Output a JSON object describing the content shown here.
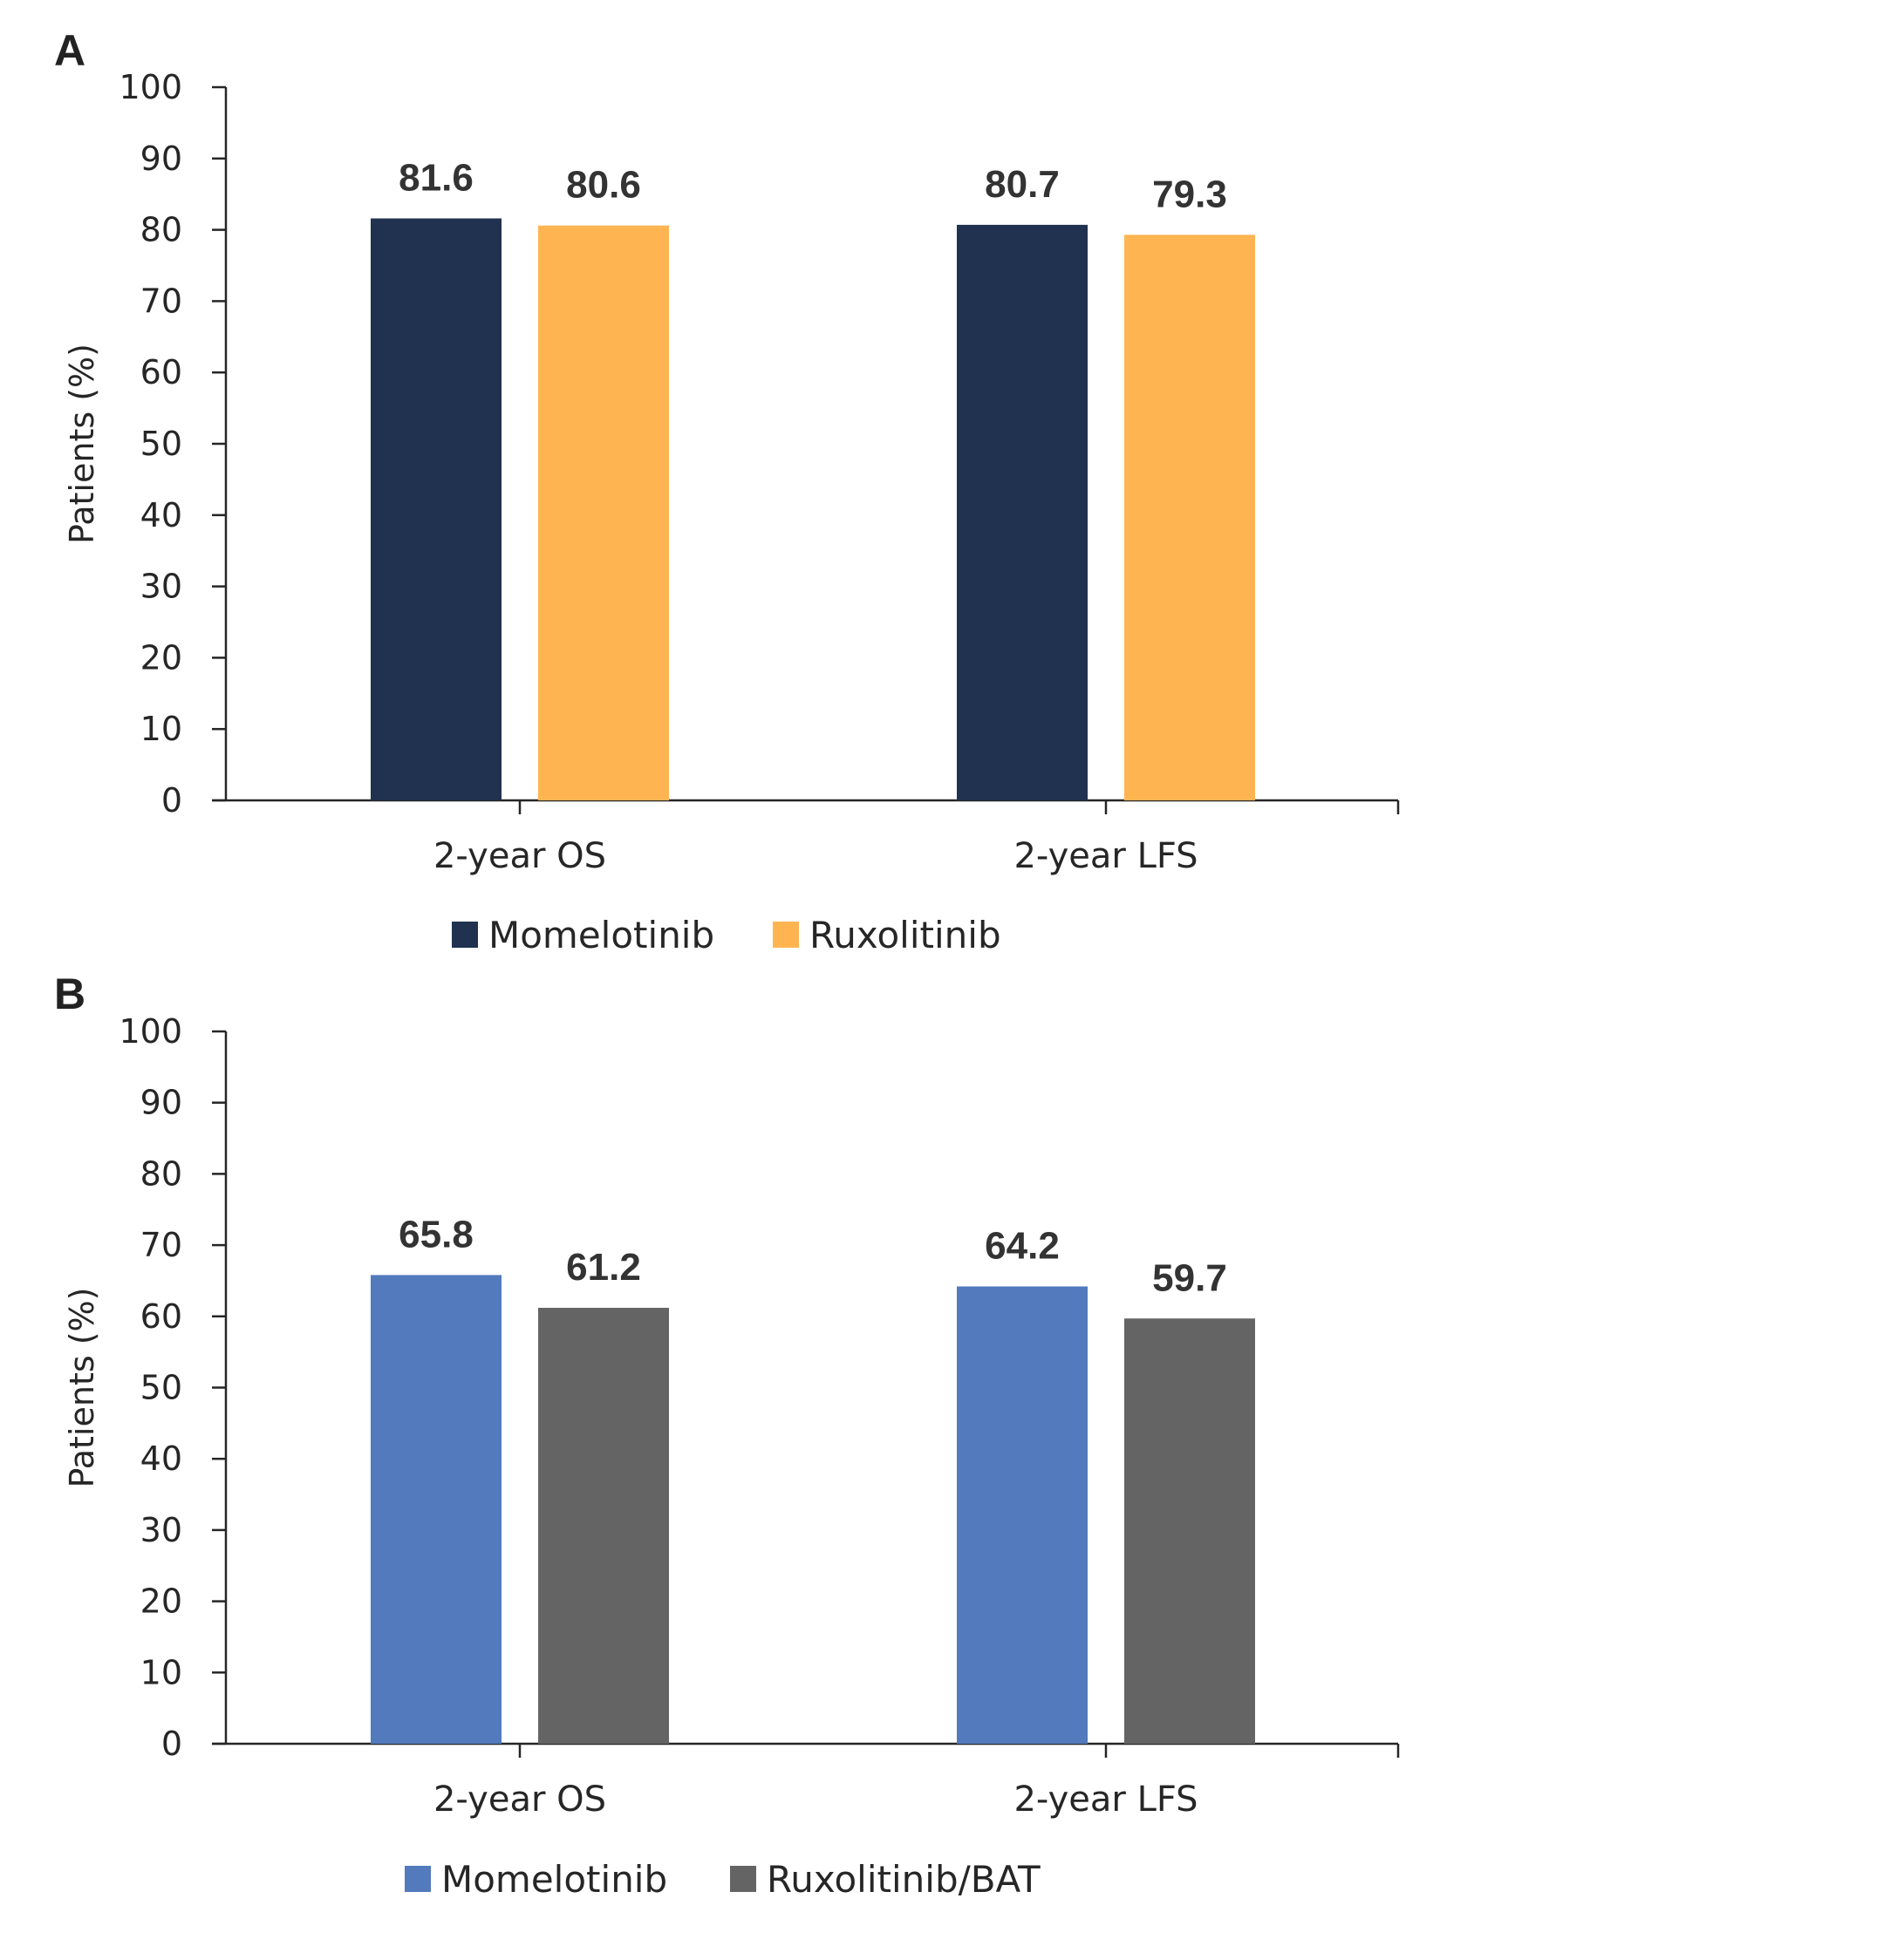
{
  "chart_data": [
    {
      "panel": "A",
      "type": "bar",
      "categories": [
        "2-year OS",
        "2-year LFS"
      ],
      "series": [
        {
          "name": "Momelotinib",
          "values": [
            81.6,
            80.7
          ],
          "color": "#203250"
        },
        {
          "name": "Ruxolitinib",
          "values": [
            80.6,
            79.3
          ],
          "color": "#FFB452"
        }
      ],
      "ylabel": "Patients (%)",
      "ylim": [
        0,
        100
      ],
      "yticks": [
        0,
        10,
        20,
        30,
        40,
        50,
        60,
        70,
        80,
        90,
        100
      ],
      "data_labels": true,
      "grid": false,
      "legend_position": "bottom"
    },
    {
      "panel": "B",
      "type": "bar",
      "categories": [
        "2-year OS",
        "2-year LFS"
      ],
      "series": [
        {
          "name": "Momelotinib",
          "values": [
            65.8,
            64.2
          ],
          "color": "#527ABD"
        },
        {
          "name": "Ruxolitinib/BAT",
          "values": [
            61.2,
            59.7
          ],
          "color": "#646464"
        }
      ],
      "ylabel": "Patients (%)",
      "ylim": [
        0,
        100
      ],
      "yticks": [
        0,
        10,
        20,
        30,
        40,
        50,
        60,
        70,
        80,
        90,
        100
      ],
      "data_labels": true,
      "grid": false,
      "legend_position": "bottom"
    }
  ]
}
